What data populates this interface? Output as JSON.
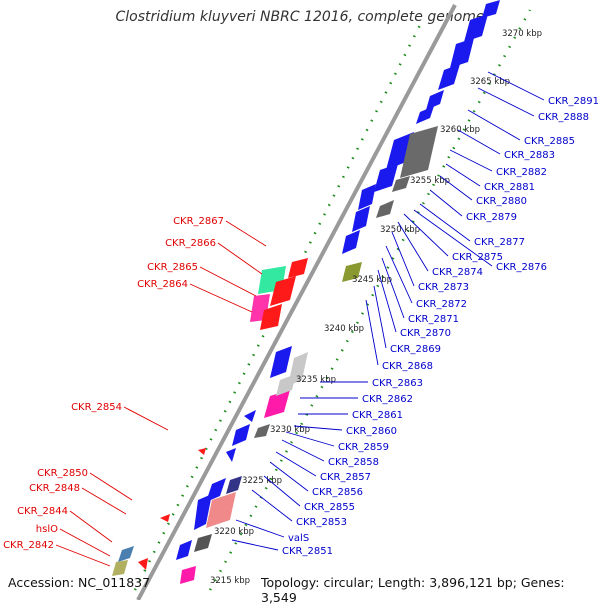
{
  "title": "Clostridium kluyveri NBRC 12016, complete genome",
  "footer": {
    "accession": "Accession: NC_011837",
    "topology": "Topology: circular; Length: 3,896,121 bp; Genes: 3,549"
  },
  "colors": {
    "plus_strand_label": "#e00000",
    "minus_strand_label": "#0000cc",
    "backbone": "#a0a0a0",
    "tick_dots": "#1a8a1a"
  },
  "scale_labels": [
    "3215 kbp",
    "3220 kbp",
    "3225 kbp",
    "3230 kbp",
    "3235 kbp",
    "3240 kbp",
    "3245 kbp",
    "3250 kbp",
    "3255 kbp",
    "3260 kbp",
    "3265 kbp",
    "3270 kbp"
  ],
  "minus_strand_gene_labels": [
    "CKR_2891",
    "CKR_2888",
    "CKR_2885",
    "CKR_2883",
    "CKR_2882",
    "CKR_2881",
    "CKR_2880",
    "CKR_2879",
    "CKR_2877",
    "CKR_2876",
    "CKR_2875",
    "CKR_2874",
    "CKR_2873",
    "CKR_2872",
    "CKR_2871",
    "CKR_2870",
    "CKR_2869",
    "CKR_2868",
    "CKR_2863",
    "CKR_2862",
    "CKR_2861",
    "CKR_2860",
    "CKR_2859",
    "CKR_2858",
    "CKR_2857",
    "CKR_2856",
    "CKR_2855",
    "CKR_2853",
    "valS",
    "CKR_2851"
  ],
  "plus_strand_gene_labels": [
    "CKR_2867",
    "CKR_2866",
    "CKR_2865",
    "CKR_2864",
    "CKR_2854",
    "CKR_2850",
    "CKR_2848",
    "CKR_2844",
    "hslO",
    "CKR_2842"
  ]
}
